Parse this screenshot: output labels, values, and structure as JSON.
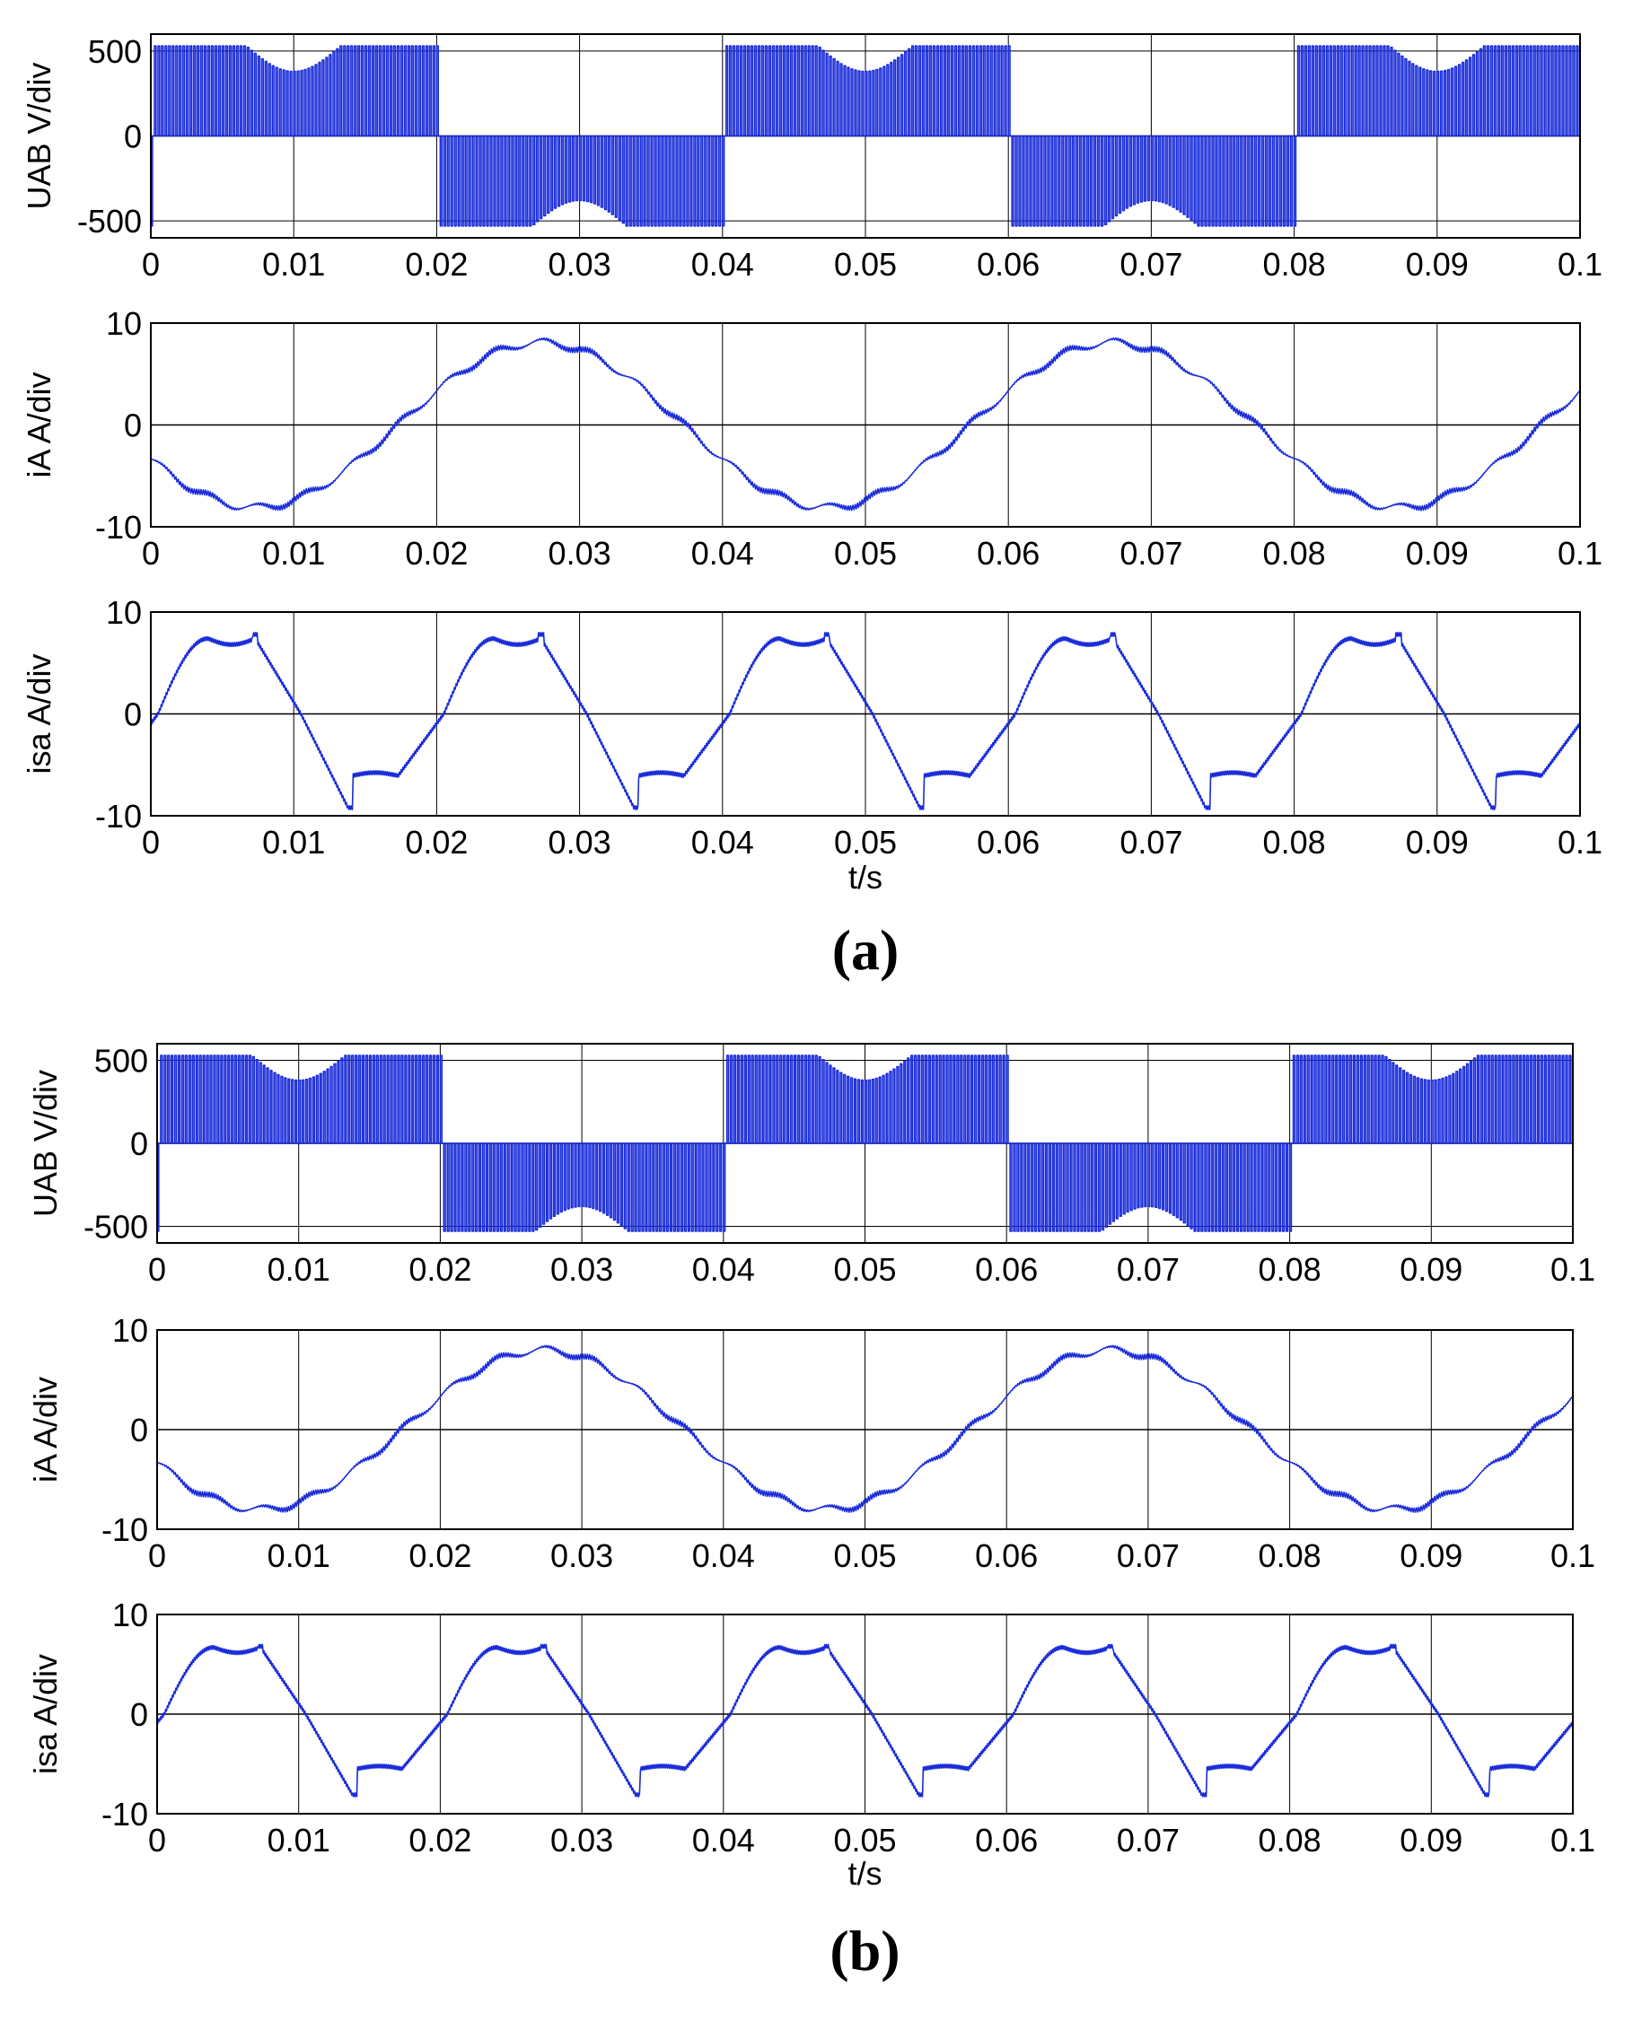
{
  "chart_data": [
    {
      "type": "line",
      "figure": "a",
      "panel_label": "(a)",
      "xlabel": "t/s",
      "xlim": [
        0,
        0.1
      ],
      "xticks": [
        "0",
        "0.01",
        "0.02",
        "0.03",
        "0.04",
        "0.05",
        "0.06",
        "0.07",
        "0.08",
        "0.09",
        "0.1"
      ],
      "series": [
        {
          "name": "UAB",
          "ylabel": "UAB V/div",
          "ylim": [
            -600,
            600
          ],
          "yticks": [
            "500",
            "0",
            "-500"
          ],
          "signal": "pwm_voltage",
          "amplitude": 530,
          "period": 0.04,
          "phase_shift": 0.0267,
          "color": "#1a2cd9"
        },
        {
          "name": "iA",
          "ylabel": "iA A/div",
          "ylim": [
            -10,
            10
          ],
          "yticks": [
            "10",
            "0",
            "-10"
          ],
          "signal": "sine_ripple",
          "amplitude": 8.1,
          "period": 0.04,
          "peak_time": 0.0273,
          "color": "#1a2cd9"
        },
        {
          "name": "isa",
          "ylabel": "isa A/div",
          "ylim": [
            -10,
            10
          ],
          "yticks": [
            "10",
            "0",
            "-10"
          ],
          "signal": "flat_top",
          "amplitude": 7.4,
          "spike_max": 7.8,
          "spike_min": -9.2,
          "period": 0.02,
          "zero_cross": 0.0005,
          "color": "#1a2cd9"
        }
      ]
    },
    {
      "type": "line",
      "figure": "b",
      "panel_label": "(b)",
      "xlabel": "t/s",
      "xlim": [
        0,
        0.1
      ],
      "xticks": [
        "0",
        "0.01",
        "0.02",
        "0.03",
        "0.04",
        "0.05",
        "0.06",
        "0.07",
        "0.08",
        "0.09",
        "0.1"
      ],
      "series": [
        {
          "name": "UAB",
          "ylabel": "UAB V/div",
          "ylim": [
            -600,
            600
          ],
          "yticks": [
            "500",
            "0",
            "-500"
          ],
          "signal": "pwm_voltage",
          "amplitude": 530,
          "period": 0.04,
          "phase_shift": 0.0267,
          "color": "#1a2cd9"
        },
        {
          "name": "iA",
          "ylabel": "iA A/div",
          "ylim": [
            -10,
            10
          ],
          "yticks": [
            "10",
            "0",
            "-10"
          ],
          "signal": "sine_ripple",
          "amplitude": 8.0,
          "period": 0.04,
          "peak_time": 0.0273,
          "color": "#1a2cd9"
        },
        {
          "name": "isa",
          "ylabel": "isa A/div",
          "ylim": [
            -10,
            10
          ],
          "yticks": [
            "10",
            "0",
            "-10"
          ],
          "signal": "flat_top",
          "amplitude": 6.7,
          "spike_max": 6.8,
          "spike_min": -8.1,
          "period": 0.02,
          "zero_cross": 0.0005,
          "color": "#1a2cd9"
        }
      ]
    }
  ]
}
